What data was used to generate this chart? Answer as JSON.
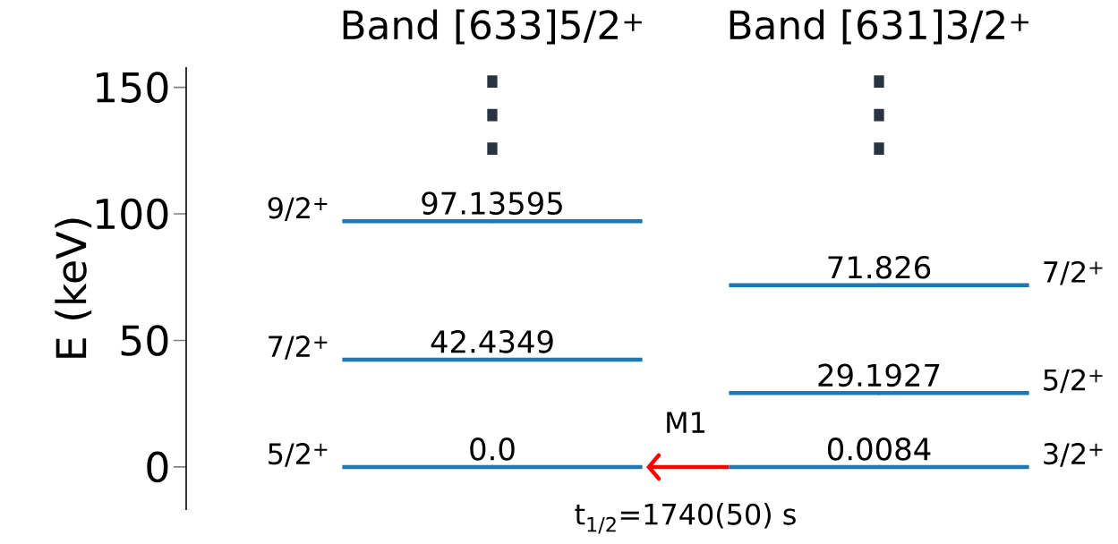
{
  "chart_data": {
    "type": "line",
    "marker": "circle",
    "categories": [
      "Band [633]5/2$^{+}$",
      "Band [631]3/2$^{+}$"
    ],
    "series": [
      {
        "color": "#1f77b4",
        "values": [
          0.0,
          null
        ],
        "value_labels": [
          "0.0",
          null
        ]
      },
      {
        "color": "#1f77b4",
        "values": [
          42.4349,
          null
        ],
        "value_labels": [
          "42.4349",
          null
        ]
      },
      {
        "color": "#1f77b4",
        "values": [
          97.13595,
          null
        ],
        "value_labels": [
          "97.13595",
          null
        ]
      },
      {
        "color": "#1f77b4",
        "values": [
          null,
          0.0084
        ],
        "value_labels": [
          null,
          "0.0084"
        ]
      },
      {
        "color": "#1f77b4",
        "values": [
          null,
          29.1927
        ],
        "value_labels": [
          null,
          "29.1927"
        ]
      },
      {
        "color": "#1f77b4",
        "values": [
          null,
          71.826
        ],
        "value_labels": [
          null,
          "71.826"
        ]
      }
    ],
    "ylabel": "E (keV)",
    "ylim": [
      -17,
      158
    ],
    "yticks": [
      0,
      50,
      100,
      150
    ],
    "annotations": [
      "M1",
      "t$_{1/2}$=1740(50) s",
      "5/2$^{+}$",
      "7/2$^{+}$",
      "9/2$^{+}$",
      "3/2$^{+}$",
      "5/2$^{+}$",
      "7/2$^{+}$",
      "⋮",
      "⋮"
    ]
  }
}
